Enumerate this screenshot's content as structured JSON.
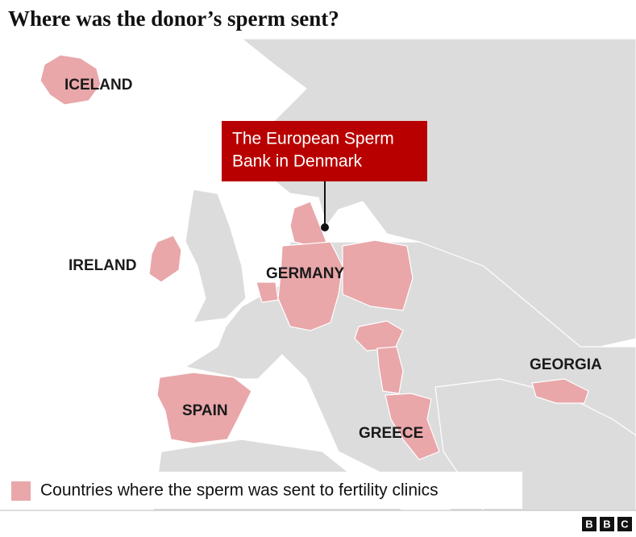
{
  "title": "Where was the donor’s sperm sent?",
  "callout": {
    "lines": [
      "The European Sperm",
      "Bank in Denmark"
    ]
  },
  "labels": [
    "ICELAND",
    "IRELAND",
    "GERMANY",
    "SPAIN",
    "GEORGIA",
    "GREECE"
  ],
  "legend": "Countries where the sperm was sent to fertility clinics",
  "logo": [
    "B",
    "B",
    "C"
  ]
}
